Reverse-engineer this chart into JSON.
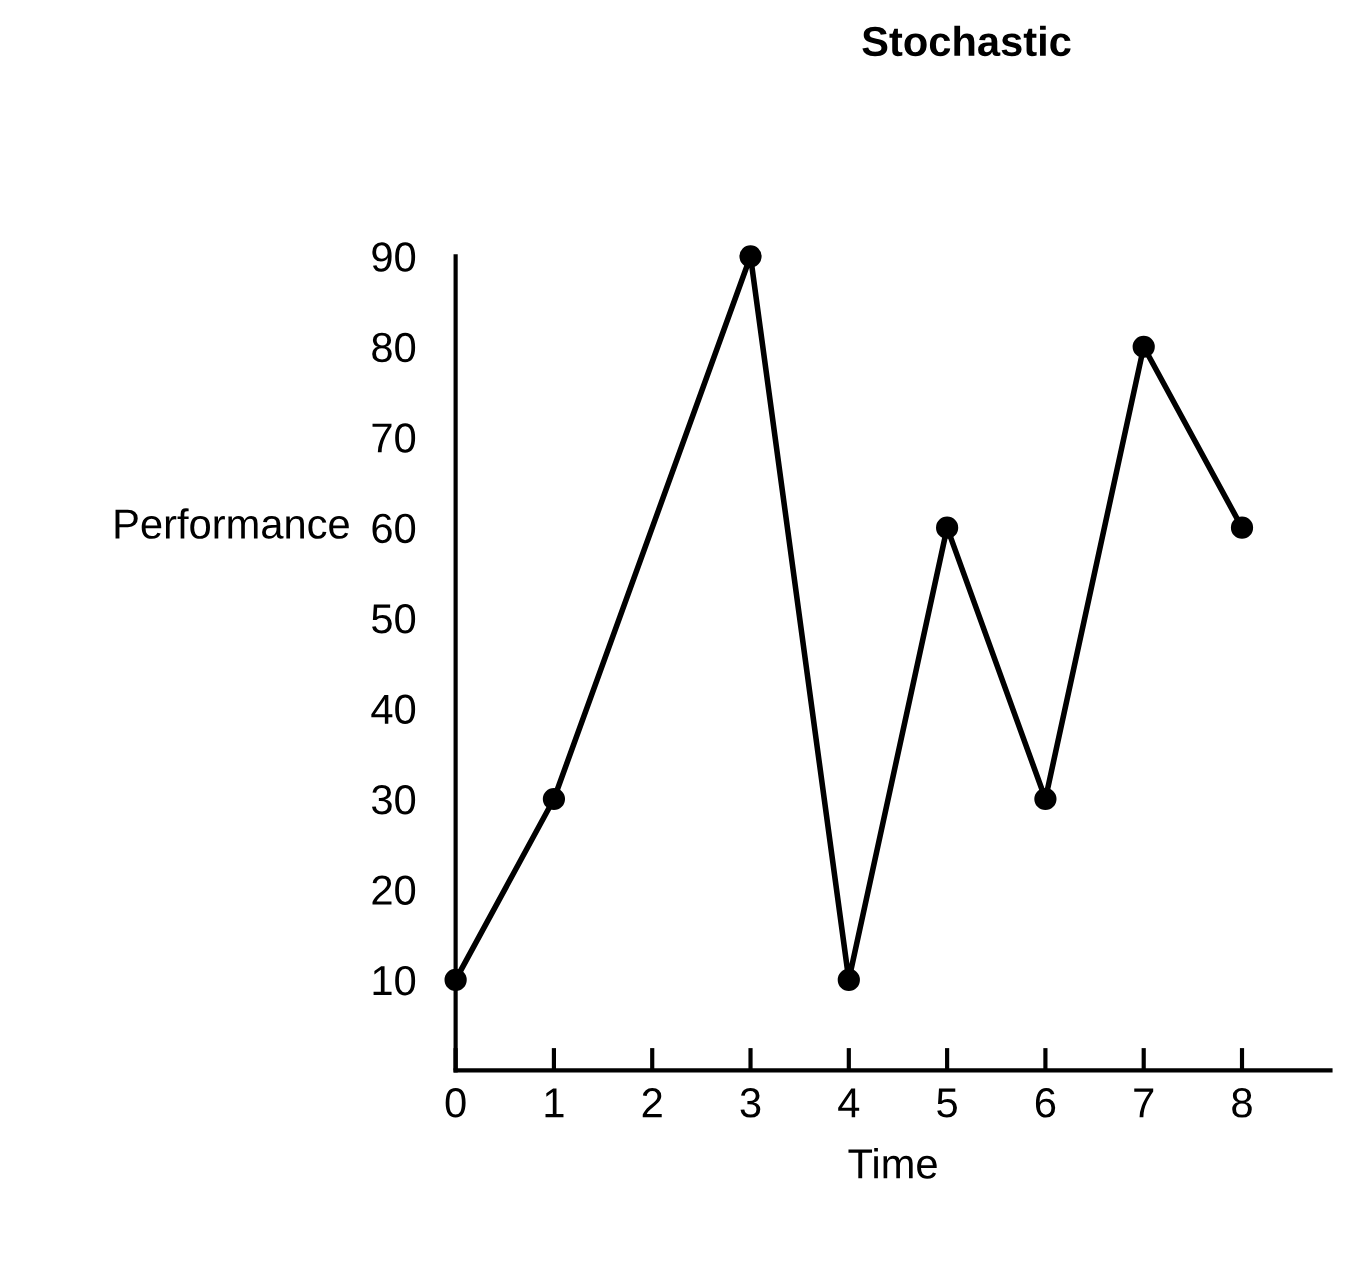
{
  "chart_data": {
    "type": "line",
    "title": "Stochastic",
    "xlabel": "Time",
    "ylabel": "Performance",
    "x": [
      0,
      1,
      3,
      4,
      5,
      6,
      7,
      8
    ],
    "series": [
      {
        "color": "#000000",
        "values": [
          10,
          30,
          90,
          10,
          60,
          30,
          80,
          60
        ]
      }
    ],
    "xlim": [
      0,
      8.9
    ],
    "ylim": [
      0,
      90
    ],
    "xticks": [
      0,
      1,
      2,
      3,
      4,
      5,
      6,
      7,
      8
    ],
    "yticks": [
      10,
      20,
      30,
      40,
      50,
      60,
      70,
      80,
      90
    ],
    "grid": false,
    "legend": false,
    "marker": "circle",
    "line_style": "solid"
  }
}
